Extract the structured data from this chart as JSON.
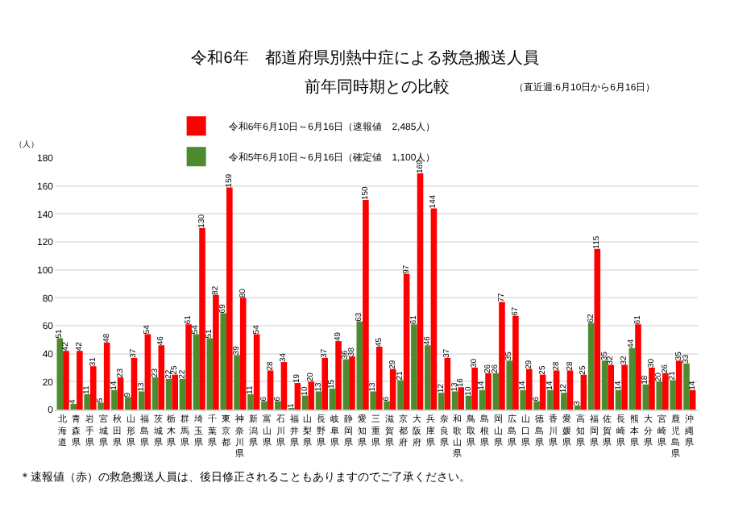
{
  "chart_data": {
    "type": "bar",
    "title": "令和6年　都道府県別熱中症による救急搬送人員",
    "subtitle": "前年同時期との比較",
    "annotations": [
      "（直近週:6月10日から6月16日）",
      "＊速報値（赤）の救急搬送人員は、後日修正されることもありますのでご了承ください。"
    ],
    "ylabel": "（人）",
    "categories": [
      "北海道",
      "青森県",
      "岩手県",
      "宮城県",
      "秋田県",
      "山形県",
      "福島県",
      "茨城県",
      "栃木県",
      "群馬県",
      "埼玉県",
      "千葉県",
      "東京都",
      "神奈川県",
      "新潟県",
      "富山県",
      "石川県",
      "福井県",
      "山梨県",
      "長野県",
      "岐阜県",
      "静岡県",
      "愛知県",
      "三重県",
      "滋賀県",
      "京都府",
      "大阪府",
      "兵庫県",
      "奈良県",
      "和歌山県",
      "鳥取県",
      "島根県",
      "岡山県",
      "広島県",
      "山口県",
      "徳島県",
      "香川県",
      "愛媛県",
      "高知県",
      "福岡県",
      "佐賀県",
      "長崎県",
      "熊本県",
      "大分県",
      "宮崎県",
      "鹿児島県",
      "沖縄県"
    ],
    "series": [
      {
        "name": "令和5年6月10日～6月16日（確定値　1,100人）",
        "color": "#4e8a2e",
        "values": [
          51,
          4,
          11,
          5,
          14,
          9,
          13,
          23,
          22,
          22,
          54,
          51,
          69,
          39,
          11,
          6,
          6,
          1,
          10,
          13,
          15,
          36,
          63,
          13,
          6,
          21,
          61,
          46,
          12,
          13,
          10,
          14,
          26,
          35,
          14,
          6,
          14,
          12,
          3,
          62,
          35,
          14,
          44,
          18,
          20,
          21,
          33
        ]
      },
      {
        "name": "令和6年6月10日～6月16日（速報値　2,485人）",
        "color": "#ff0000",
        "values": [
          42,
          42,
          31,
          48,
          23,
          37,
          54,
          46,
          25,
          61,
          130,
          82,
          159,
          80,
          54,
          28,
          34,
          19,
          20,
          37,
          49,
          38,
          150,
          45,
          29,
          97,
          169,
          144,
          37,
          16,
          30,
          26,
          77,
          67,
          29,
          25,
          28,
          28,
          25,
          115,
          32,
          32,
          61,
          30,
          26,
          35,
          14
        ]
      }
    ],
    "ylim": [
      0,
      180
    ],
    "yticks": [
      0,
      20,
      40,
      60,
      80,
      100,
      120,
      140,
      160,
      180
    ],
    "grid": "y",
    "legend": "top",
    "data_labels": true
  }
}
